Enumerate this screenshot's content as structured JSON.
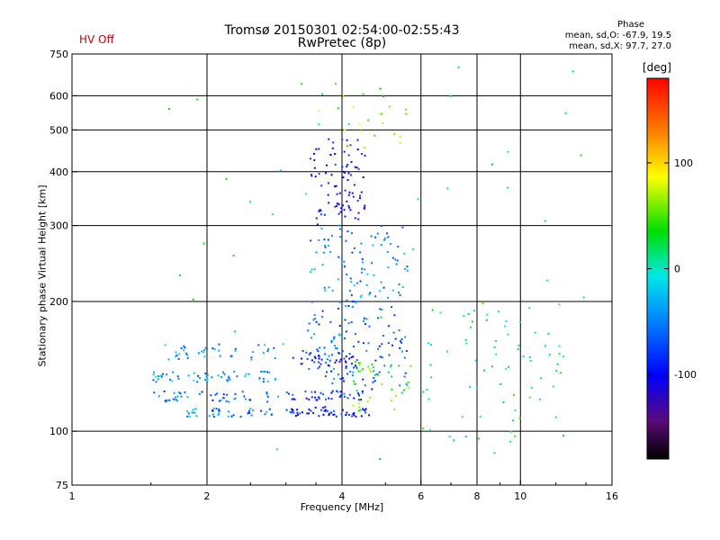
{
  "header": {
    "title_line1": "Tromsø 20150301 02:54:00-02:55:43",
    "title_line2": "RwPretec (8p)",
    "status": "HV Off"
  },
  "phase_stats": {
    "title": "Phase",
    "o_line": "mean, sd,O: -67.9, 19.5",
    "x_line": "mean, sd,X:  97.7, 27.0"
  },
  "colorbar": {
    "unit": "[deg]",
    "ticks": [
      "100",
      "0",
      "-100"
    ],
    "tick_values": [
      100,
      0,
      -100
    ],
    "range": [
      -180,
      180
    ]
  },
  "chart_data": {
    "type": "scatter",
    "title": "Tromsø 20150301 02:54:00-02:55:43",
    "subtitle": "RwPretec (8p)",
    "xlabel": "Frequency [MHz]",
    "ylabel": "Stationary phase Virtual Height [km]",
    "xscale": "log",
    "yscale": "log",
    "xlim": [
      1,
      16
    ],
    "ylim": [
      75,
      750
    ],
    "xticks": [
      1,
      2,
      4,
      6,
      8,
      10,
      16
    ],
    "yticks": [
      75,
      100,
      200,
      300,
      400,
      500,
      600,
      750
    ],
    "x_gridlines": [
      2,
      4,
      6,
      8,
      10
    ],
    "y_gridlines": [
      100,
      200,
      300,
      400,
      500,
      600
    ],
    "grid": true,
    "legend": "colorbar right (phase, deg)",
    "clusters": [
      {
        "x_range": [
          1.5,
          2.95
        ],
        "y_range": [
          130,
          138
        ],
        "phase": -40,
        "n": 55
      },
      {
        "x_range": [
          1.5,
          2.9
        ],
        "y_range": [
          117,
          124
        ],
        "phase": -60,
        "n": 45
      },
      {
        "x_range": [
          1.8,
          2.8
        ],
        "y_range": [
          108,
          113
        ],
        "phase": -50,
        "n": 40
      },
      {
        "x_range": [
          1.6,
          3.0
        ],
        "y_range": [
          145,
          160
        ],
        "phase": -45,
        "n": 40
      },
      {
        "x_range": [
          3.0,
          4.6
        ],
        "y_range": [
          108,
          114
        ],
        "phase": -90,
        "n": 55
      },
      {
        "x_range": [
          3.0,
          4.6
        ],
        "y_range": [
          118,
          124
        ],
        "phase": -80,
        "n": 40
      },
      {
        "x_range": [
          3.1,
          4.3
        ],
        "y_range": [
          140,
          155
        ],
        "phase": -95,
        "n": 40
      },
      {
        "x_range": [
          3.3,
          5.6
        ],
        "y_range": [
          125,
          200
        ],
        "phase": -60,
        "n": 120
      },
      {
        "x_range": [
          3.4,
          4.5
        ],
        "y_range": [
          300,
          480
        ],
        "phase": -100,
        "n": 90
      },
      {
        "x_range": [
          3.4,
          5.6
        ],
        "y_range": [
          200,
          300
        ],
        "phase": -50,
        "n": 90
      },
      {
        "x_range": [
          4.2,
          5.7
        ],
        "y_range": [
          108,
          145
        ],
        "phase": 40,
        "n": 40
      },
      {
        "x_range": [
          6.0,
          12.5
        ],
        "y_range": [
          95,
          200
        ],
        "phase": 20,
        "n": 70
      },
      {
        "x_range": [
          3.5,
          5.6
        ],
        "y_range": [
          450,
          640
        ],
        "phase": 60,
        "n": 25
      },
      {
        "x_range": [
          1.5,
          14.0
        ],
        "y_range": [
          80,
          700
        ],
        "phase": 0,
        "n": 45
      }
    ]
  }
}
